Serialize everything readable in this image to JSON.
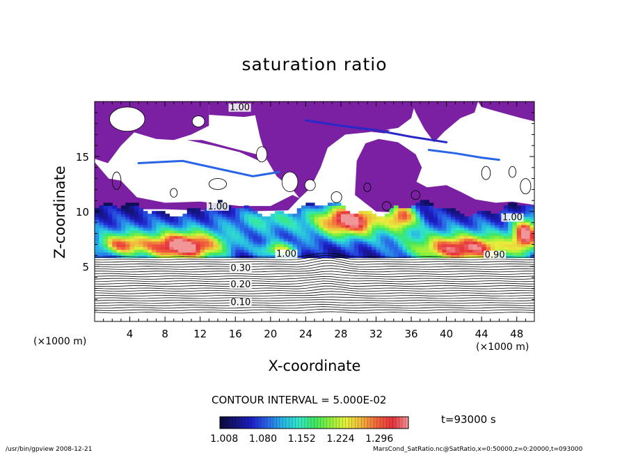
{
  "chart_data": {
    "type": "heatmap",
    "title": "saturation ratio",
    "xlabel": "X-coordinate",
    "ylabel": "Z-coordinate",
    "x_unit_left": "(×1000 m)",
    "x_unit_right": "(×1000 m)",
    "xlim": [
      0,
      50
    ],
    "ylim": [
      0,
      20
    ],
    "x_ticks": [
      4,
      8,
      12,
      16,
      20,
      24,
      28,
      32,
      36,
      40,
      44,
      48
    ],
    "y_ticks": [
      5,
      10,
      15
    ],
    "contour_labels": [
      {
        "text": "1.00",
        "x": 16.5,
        "y": 19.2
      },
      {
        "text": "1.00",
        "x": 14.0,
        "y": 10.2
      },
      {
        "text": "1.00",
        "x": 21.8,
        "y": 5.9
      },
      {
        "text": "1.00",
        "x": 47.5,
        "y": 9.2
      },
      {
        "text": "0.90",
        "x": 45.5,
        "y": 5.8
      },
      {
        "text": "0.30",
        "x": 16.6,
        "y": 4.6
      },
      {
        "text": "0.20",
        "x": 16.6,
        "y": 3.1
      },
      {
        "text": "0.10",
        "x": 16.6,
        "y": 1.5
      }
    ],
    "contour_interval_text": "CONTOUR INTERVAL = 5.000E-02",
    "colorbar": {
      "min": 1.0,
      "max": 1.35,
      "tick_labels": [
        "1.008",
        "1.080",
        "1.152",
        "1.224",
        "1.296"
      ],
      "colors": [
        "#0a0a3c",
        "#14147a",
        "#1e1ec8",
        "#2864e6",
        "#28b4e6",
        "#32e6c8",
        "#3ce664",
        "#8cf03c",
        "#e6f03c",
        "#f0b43c",
        "#f0643c",
        "#e6323c",
        "#f09696"
      ]
    },
    "grid": false,
    "legend": "colorbar-bottom",
    "time": "t=93000 s"
  },
  "footer": {
    "left": "/usr/bin/gpview  2008-12-21",
    "right": "MarsCond_SatRatio.nc@SatRatio,x=0:50000,z=0:20000,t=093000"
  },
  "colors": {
    "purple_region": "#7b1fa3",
    "contour_lines": "#000000"
  }
}
